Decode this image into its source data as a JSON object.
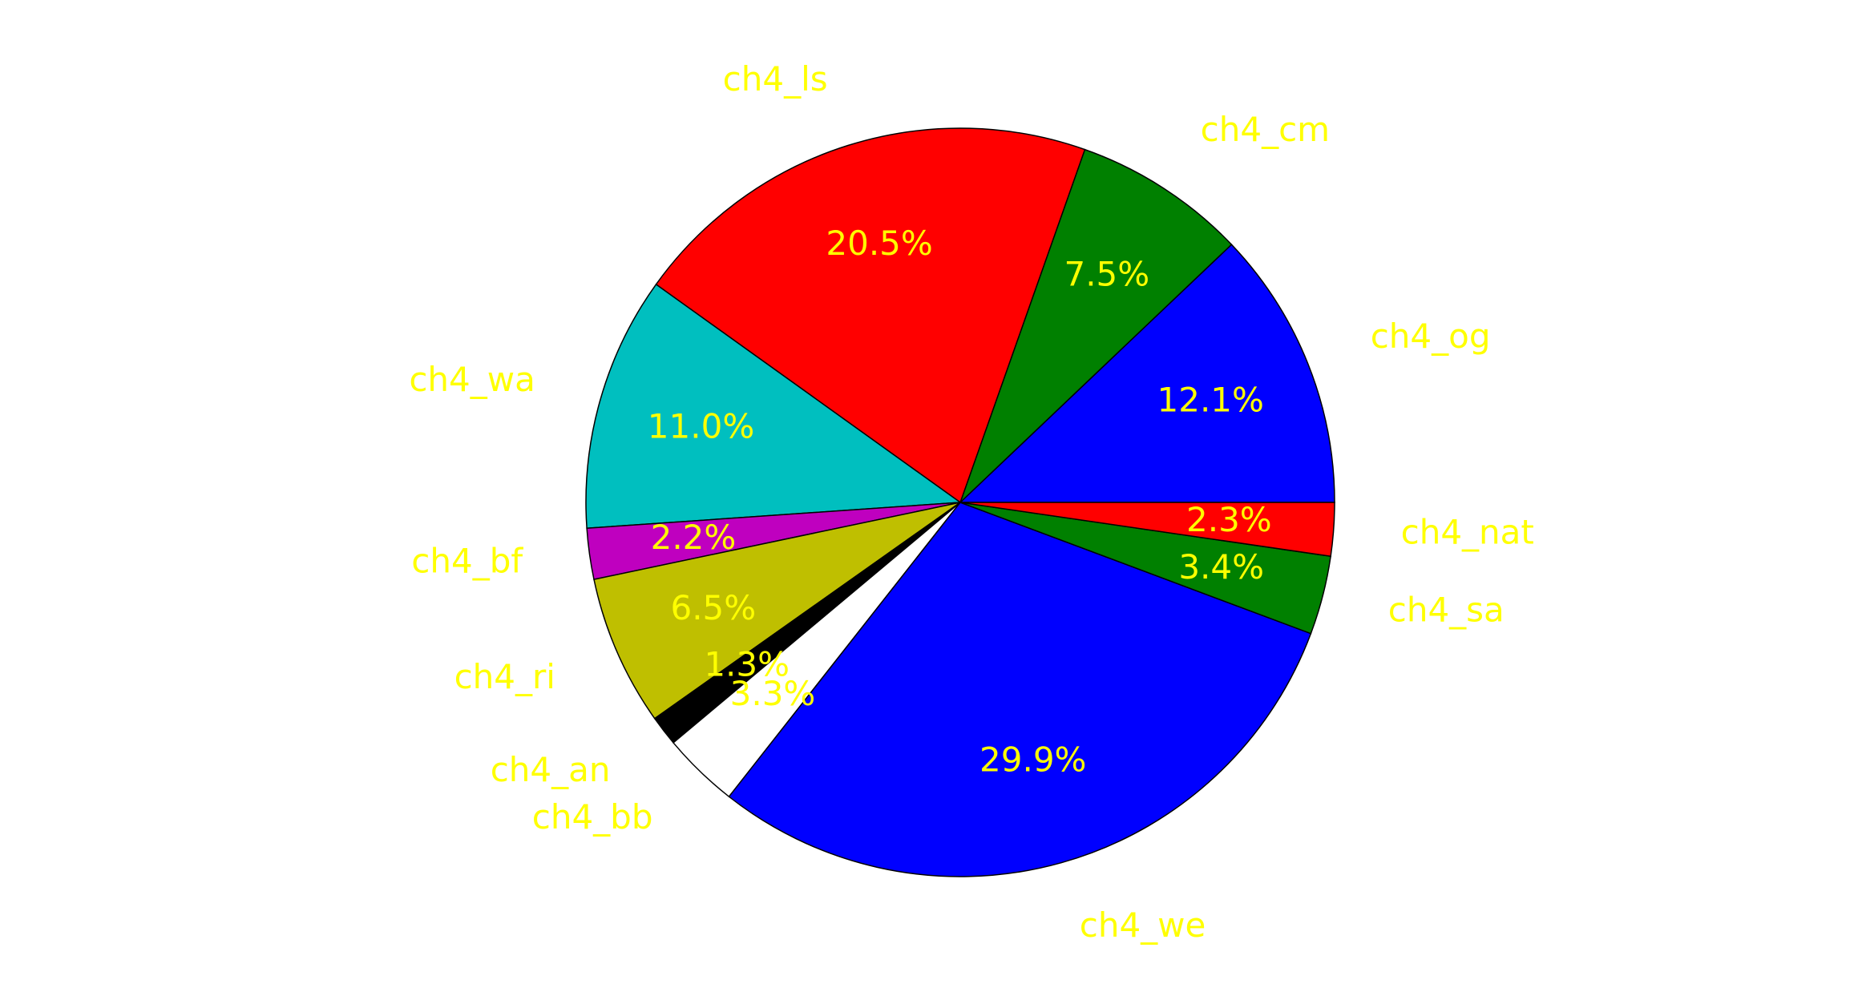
{
  "chart_data": {
    "type": "pie",
    "title": "",
    "start_angle_deg": 0,
    "direction": "counterclockwise",
    "slices": [
      {
        "label": "ch4_og",
        "pct_text": "12.1%",
        "value": 12.1,
        "color": "#0000ff"
      },
      {
        "label": "ch4_cm",
        "pct_text": "7.5%",
        "value": 7.5,
        "color": "#008000"
      },
      {
        "label": "ch4_ls",
        "pct_text": "20.5%",
        "value": 20.5,
        "color": "#ff0000"
      },
      {
        "label": "ch4_wa",
        "pct_text": "11.0%",
        "value": 11.0,
        "color": "#00bfbf"
      },
      {
        "label": "ch4_bf",
        "pct_text": "2.2%",
        "value": 2.2,
        "color": "#bf00bf"
      },
      {
        "label": "ch4_ri",
        "pct_text": "6.5%",
        "value": 6.5,
        "color": "#bfbf00"
      },
      {
        "label": "ch4_an",
        "pct_text": "1.3%",
        "value": 1.3,
        "color": "#000000"
      },
      {
        "label": "ch4_bb",
        "pct_text": "3.3%",
        "value": 3.3,
        "color": "#ffffff"
      },
      {
        "label": "ch4_we",
        "pct_text": "29.9%",
        "value": 29.9,
        "color": "#0000ff"
      },
      {
        "label": "ch4_sa",
        "pct_text": "3.4%",
        "value": 3.4,
        "color": "#008000"
      },
      {
        "label": "ch4_nat",
        "pct_text": "2.3%",
        "value": 2.3,
        "color": "#ff0000"
      }
    ],
    "label_color": "#ffff00",
    "edge_color": "#000000"
  }
}
